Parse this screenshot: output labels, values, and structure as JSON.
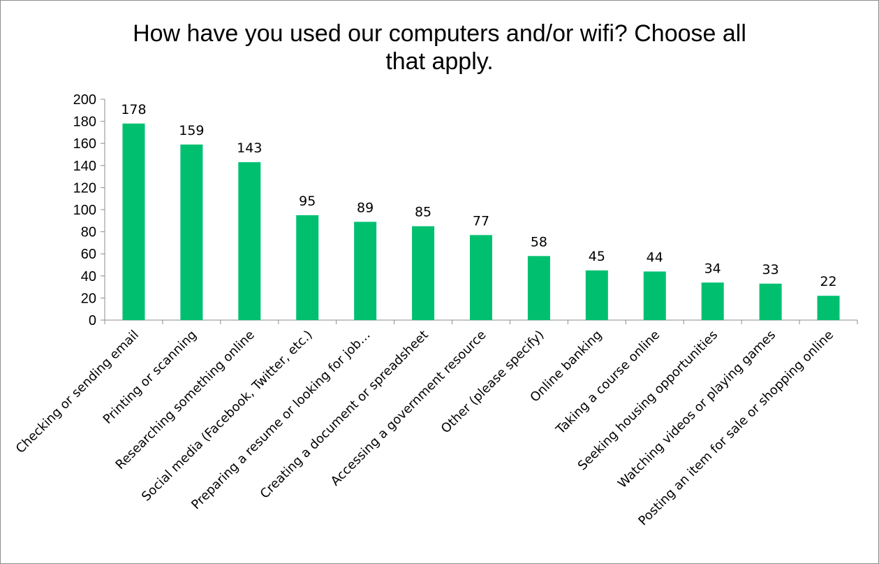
{
  "chart_data": {
    "type": "bar",
    "title_lines": [
      "How have you used our computers and/or wifi? Choose all",
      "that apply."
    ],
    "categories": [
      "Checking or sending email",
      "Printing or scanning",
      "Researching something online",
      "Social media (Facebook, Twitter, etc.)",
      "Preparing a resume or looking for job…",
      "Creating a document or spreadsheet",
      "Accessing a government resource",
      "Other (please specify)",
      "Online banking",
      "Taking a course online",
      "Seeking housing opportunities",
      "Watching videos or playing games",
      "Posting an item for sale or shopping online"
    ],
    "values": [
      178,
      159,
      143,
      95,
      89,
      85,
      77,
      58,
      45,
      44,
      34,
      33,
      22
    ],
    "ylim": [
      0,
      200
    ],
    "yticks": [
      0,
      20,
      40,
      60,
      80,
      100,
      120,
      140,
      160,
      180,
      200
    ],
    "bar_color": "#00c070",
    "data_labels": true,
    "grid": false,
    "legend": "none"
  }
}
